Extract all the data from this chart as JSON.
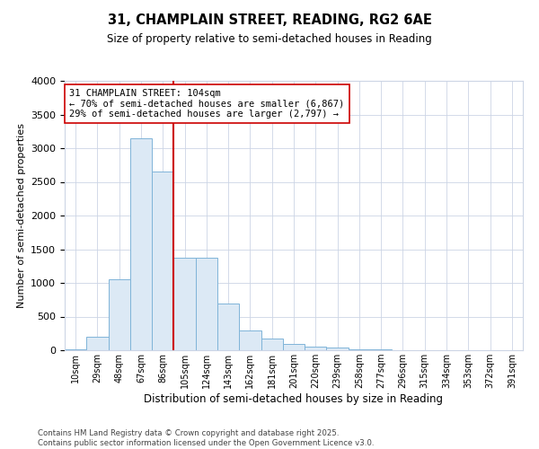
{
  "title_line1": "31, CHAMPLAIN STREET, READING, RG2 6AE",
  "title_line2": "Size of property relative to semi-detached houses in Reading",
  "xlabel": "Distribution of semi-detached houses by size in Reading",
  "ylabel": "Number of semi-detached properties",
  "categories": [
    "10sqm",
    "29sqm",
    "48sqm",
    "67sqm",
    "86sqm",
    "105sqm",
    "124sqm",
    "143sqm",
    "162sqm",
    "181sqm",
    "201sqm",
    "220sqm",
    "239sqm",
    "258sqm",
    "277sqm",
    "296sqm",
    "315sqm",
    "334sqm",
    "353sqm",
    "372sqm",
    "391sqm"
  ],
  "values": [
    15,
    200,
    1060,
    3150,
    2650,
    1380,
    1380,
    690,
    290,
    170,
    90,
    55,
    40,
    20,
    8,
    5,
    2,
    0,
    0,
    0,
    0
  ],
  "bar_color": "#dce9f5",
  "bar_edge_color": "#7fb4d8",
  "vline_x_index": 5,
  "vline_color": "#cc0000",
  "property_size": "104sqm",
  "property_name": "31 CHAMPLAIN STREET",
  "pct_smaller": 70,
  "count_smaller": 6867,
  "pct_larger": 29,
  "count_larger": 2797,
  "annotation_box_edge_color": "#cc0000",
  "ylim": [
    0,
    4000
  ],
  "yticks": [
    0,
    500,
    1000,
    1500,
    2000,
    2500,
    3000,
    3500,
    4000
  ],
  "footer_line1": "Contains HM Land Registry data © Crown copyright and database right 2025.",
  "footer_line2": "Contains public sector information licensed under the Open Government Licence v3.0.",
  "background_color": "#ffffff",
  "grid_color": "#ccd5e5"
}
